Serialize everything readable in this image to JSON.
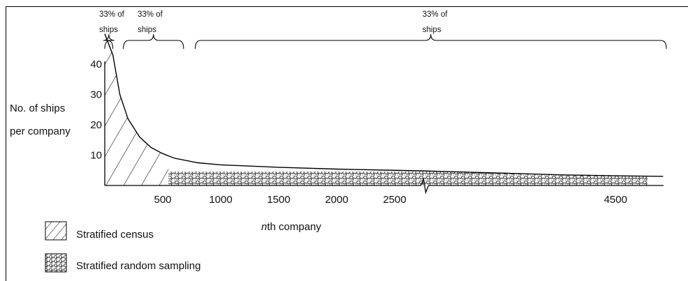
{
  "chart_data": {
    "type": "area",
    "title": "",
    "ylabel": "No. of ships per company",
    "xlabel_italic": "n",
    "xlabel_rest": "th company",
    "xlim": [
      0,
      5000
    ],
    "ylim": [
      0,
      45
    ],
    "x_ticks": [
      {
        "value": 500,
        "label": "500"
      },
      {
        "value": 1000,
        "label": "1000"
      },
      {
        "value": 1500,
        "label": "1500"
      },
      {
        "value": 2000,
        "label": "2000"
      },
      {
        "value": 2500,
        "label": "2500"
      },
      {
        "value": 4500,
        "label": "4500"
      }
    ],
    "y_ticks": [
      {
        "value": 10,
        "label": "10"
      },
      {
        "value": 20,
        "label": "20"
      },
      {
        "value": 30,
        "label": "30"
      },
      {
        "value": 40,
        "label": "40"
      }
    ],
    "axis_break_after": 2750,
    "curve": {
      "x": [
        0,
        70,
        130,
        200,
        300,
        400,
        500,
        600,
        800,
        1000,
        1500,
        2000,
        2500,
        2750,
        3000,
        3500,
        4000,
        4500,
        4950
      ],
      "y": [
        50,
        43,
        30,
        22,
        16,
        12.5,
        10.5,
        9,
        7.5,
        6.8,
        6,
        5.4,
        5,
        4.8,
        4.5,
        4,
        3.5,
        3.2,
        3
      ]
    },
    "regions": [
      {
        "name": "Stratified census",
        "x_start": 0,
        "x_end": 550,
        "fill": "hatch"
      },
      {
        "name": "Stratified random sampling",
        "x_start": 550,
        "x_end": 4800,
        "fill": "circles"
      }
    ],
    "braces": [
      {
        "x_start": 0,
        "x_end": 70,
        "label_line1": "33% of",
        "label_line2": "ships"
      },
      {
        "x_start": 160,
        "x_end": 680,
        "label_line1": "33% of",
        "label_line2": "ships"
      },
      {
        "x_start": 780,
        "x_end": 5000,
        "label_line1": "33% of",
        "label_line2": "ships"
      }
    ],
    "legend": {
      "placement": "bottom-left",
      "items": [
        {
          "label": "Stratified census",
          "pattern": "hatch"
        },
        {
          "label": "Stratified random sampling",
          "pattern": "circles"
        }
      ]
    }
  }
}
